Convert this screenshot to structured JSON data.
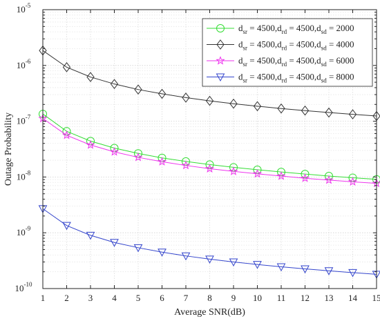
{
  "chart_data": {
    "type": "line",
    "title": "",
    "xlabel": "Average SNR(dB)",
    "ylabel": "Outage Probability",
    "xlim": [
      1,
      15
    ],
    "ylim": [
      1e-10,
      1e-05
    ],
    "yscale": "log",
    "grid": true,
    "legend_position": "top-right",
    "x_ticks": [
      "1",
      "2",
      "3",
      "4",
      "5",
      "6",
      "7",
      "8",
      "9",
      "10",
      "11",
      "12",
      "13",
      "14",
      "15"
    ],
    "y_tick_base": "10",
    "y_ticks": [
      {
        "value": 1e-10,
        "exp": "-10"
      },
      {
        "value": 1e-09,
        "exp": "-9"
      },
      {
        "value": 1e-08,
        "exp": "-8"
      },
      {
        "value": 1e-07,
        "exp": "-7"
      },
      {
        "value": 1e-06,
        "exp": "-6"
      },
      {
        "value": 1e-05,
        "exp": "-5"
      }
    ],
    "x": [
      1,
      2,
      3,
      4,
      5,
      6,
      7,
      8,
      9,
      10,
      11,
      12,
      13,
      14,
      15
    ],
    "series": [
      {
        "name": "d_sr = 4500, d_rd = 4500, d_sd = 2000",
        "legend": [
          {
            "t": "d"
          },
          {
            "t": "sr",
            "sub": true
          },
          {
            "t": " = 4500,d"
          },
          {
            "t": "rd",
            "sub": true
          },
          {
            "t": " = 4500,d"
          },
          {
            "t": "sd",
            "sub": true
          },
          {
            "t": " = 2000"
          }
        ],
        "color": "#33dd33",
        "marker": "circle",
        "values": [
          1.35e-07,
          6.6e-08,
          4.4e-08,
          3.3e-08,
          2.65e-08,
          2.2e-08,
          1.9e-08,
          1.67e-08,
          1.49e-08,
          1.35e-08,
          1.23e-08,
          1.13e-08,
          1.04e-08,
          9.7e-09,
          9.1e-09
        ]
      },
      {
        "name": "d_sr = 4500, d_rd = 4500, d_sd = 4000",
        "legend": [
          {
            "t": "d"
          },
          {
            "t": "sr",
            "sub": true
          },
          {
            "t": " = 4500,d"
          },
          {
            "t": "rd",
            "sub": true
          },
          {
            "t": " = 4500,d"
          },
          {
            "t": "sd",
            "sub": true
          },
          {
            "t": " = 4000"
          }
        ],
        "color": "#333333",
        "marker": "diamond",
        "values": [
          1.85e-06,
          9.3e-07,
          6.2e-07,
          4.65e-07,
          3.7e-07,
          3.1e-07,
          2.65e-07,
          2.32e-07,
          2.06e-07,
          1.86e-07,
          1.69e-07,
          1.55e-07,
          1.43e-07,
          1.33e-07,
          1.24e-07
        ]
      },
      {
        "name": "d_sr = 4500, d_rd = 4500, d_sd = 6000",
        "legend": [
          {
            "t": "d"
          },
          {
            "t": "sr",
            "sub": true
          },
          {
            "t": " = 4500,d"
          },
          {
            "t": "rd",
            "sub": true
          },
          {
            "t": " = 4500,d"
          },
          {
            "t": "sd",
            "sub": true
          },
          {
            "t": " = 6000"
          }
        ],
        "color": "#ee33ee",
        "marker": "star",
        "values": [
          1.12e-07,
          5.6e-08,
          3.75e-08,
          2.82e-08,
          2.25e-08,
          1.88e-08,
          1.61e-08,
          1.41e-08,
          1.26e-08,
          1.14e-08,
          1.04e-08,
          9.5e-09,
          8.8e-09,
          8.2e-09,
          7.7e-09
        ]
      },
      {
        "name": "d_sr = 4500, d_rd = 4500, d_sd = 8000",
        "legend": [
          {
            "t": "d"
          },
          {
            "t": "sr",
            "sub": true
          },
          {
            "t": " = 4500,d"
          },
          {
            "t": "rd",
            "sub": true
          },
          {
            "t": " = 4500,d"
          },
          {
            "t": "sd",
            "sub": true
          },
          {
            "t": " = 8000"
          }
        ],
        "color": "#3344cc",
        "marker": "triangle-down",
        "values": [
          2.7e-09,
          1.35e-09,
          9e-10,
          6.7e-10,
          5.4e-10,
          4.5e-10,
          3.85e-10,
          3.37e-10,
          3e-10,
          2.7e-10,
          2.45e-10,
          2.25e-10,
          2.08e-10,
          1.93e-10,
          1.8e-10
        ]
      }
    ]
  }
}
